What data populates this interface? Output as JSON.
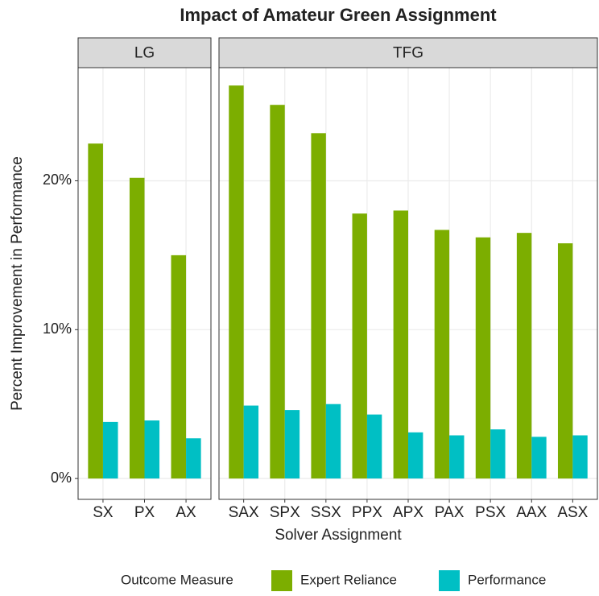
{
  "chart_data": {
    "type": "bar",
    "title": "Impact of Amateur Green Assignment",
    "xlabel": "Solver Assignment",
    "ylabel": "Percent Improvement in Performance",
    "legend_title": "Outcome Measure",
    "legend_position": "bottom",
    "grid": true,
    "ylim": [
      -1.4,
      27.6
    ],
    "yticks": [
      {
        "value": 0,
        "label": "0%"
      },
      {
        "value": 10,
        "label": "10%"
      },
      {
        "value": 20,
        "label": "20%"
      }
    ],
    "series": [
      {
        "name": "Expert Reliance",
        "color": "#7cae00"
      },
      {
        "name": "Performance",
        "color": "#00bfc4"
      }
    ],
    "panels": [
      {
        "title": "LG",
        "categories": [
          "SX",
          "PX",
          "AX"
        ],
        "series": [
          {
            "values": [
              22.5,
              20.2,
              15.0
            ]
          },
          {
            "values": [
              3.8,
              3.9,
              2.7
            ]
          }
        ]
      },
      {
        "title": "TFG",
        "categories": [
          "SAX",
          "SPX",
          "SSX",
          "PPX",
          "APX",
          "PAX",
          "PSX",
          "AAX",
          "ASX"
        ],
        "series": [
          {
            "values": [
              26.4,
              25.1,
              23.2,
              17.8,
              18.0,
              16.7,
              16.2,
              16.5,
              15.8
            ]
          },
          {
            "values": [
              4.9,
              4.6,
              5.0,
              4.3,
              3.1,
              2.9,
              3.3,
              2.8,
              2.9
            ]
          }
        ]
      }
    ]
  }
}
